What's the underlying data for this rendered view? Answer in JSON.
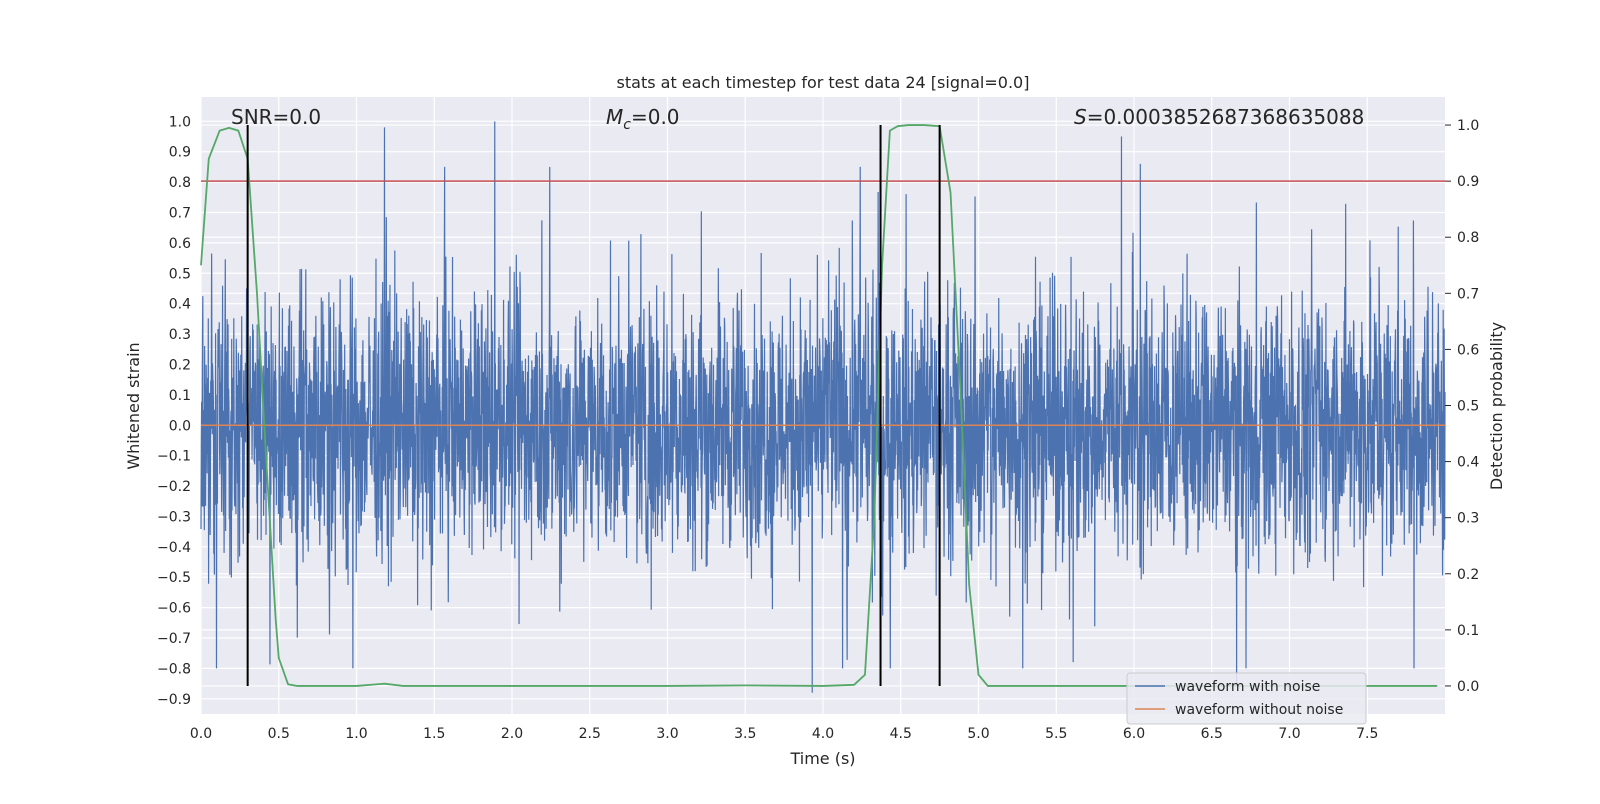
{
  "chart_data": {
    "type": "line",
    "title": "stats at each timestep for test data 24 [signal=0.0]",
    "xlabel": "Time (s)",
    "ylabel": "Whitened strain",
    "y2label": "Detection probability",
    "xlim": [
      0.0,
      8.0
    ],
    "ylim": [
      -0.95,
      1.08
    ],
    "y2lim": [
      -0.05,
      1.05
    ],
    "x_ticks": [
      0.0,
      0.5,
      1.0,
      1.5,
      2.0,
      2.5,
      3.0,
      3.5,
      4.0,
      4.5,
      5.0,
      5.5,
      6.0,
      6.5,
      7.0,
      7.5
    ],
    "x_tick_labels": [
      "0.0",
      "0.5",
      "1.0",
      "1.5",
      "2.0",
      "2.5",
      "3.0",
      "3.5",
      "4.0",
      "4.5",
      "5.0",
      "5.5",
      "6.0",
      "6.5",
      "7.0",
      "7.5"
    ],
    "y_ticks": [
      1.0,
      0.9,
      0.8,
      0.7,
      0.6,
      0.5,
      0.4,
      0.3,
      0.2,
      0.1,
      0.0,
      -0.1,
      -0.2,
      -0.3,
      -0.4,
      -0.5,
      -0.6,
      -0.7,
      -0.8,
      -0.9
    ],
    "y_tick_labels": [
      "1.0",
      "0.9",
      "0.8",
      "0.7",
      "0.6",
      "0.5",
      "0.4",
      "0.3",
      "0.2",
      "0.1",
      "0.0",
      "−0.1",
      "−0.2",
      "−0.3",
      "−0.4",
      "−0.5",
      "−0.6",
      "−0.7",
      "−0.8",
      "−0.9"
    ],
    "y2_ticks": [
      1.0,
      0.9,
      0.8,
      0.7,
      0.6,
      0.5,
      0.4,
      0.3,
      0.2,
      0.1,
      0.0
    ],
    "y2_tick_labels": [
      "1.0",
      "0.9",
      "0.8",
      "0.7",
      "0.6",
      "0.5",
      "0.4",
      "0.3",
      "0.2",
      "0.1",
      "0.0"
    ],
    "grid": true,
    "series": [
      {
        "name": "waveform with noise",
        "color": "#4c72b0",
        "axis": "left",
        "kind": "noise",
        "sample_count": 4096,
        "envelope": [
          -0.55,
          0.6
        ],
        "extreme_peaks": [
          {
            "x": 1.18,
            "y": 0.98
          },
          {
            "x": 1.89,
            "y": 1.0
          },
          {
            "x": 3.93,
            "y": -0.88
          },
          {
            "x": 6.66,
            "y": -0.85
          },
          {
            "x": 5.92,
            "y": 0.95
          },
          {
            "x": 6.04,
            "y": 0.86
          },
          {
            "x": 4.24,
            "y": 0.85
          },
          {
            "x": 7.8,
            "y": -0.8
          },
          {
            "x": 0.1,
            "y": -0.8
          }
        ]
      },
      {
        "name": "waveform without noise",
        "color": "#dd8452",
        "axis": "left",
        "x": [
          0.0,
          8.0
        ],
        "y": [
          0.0,
          0.0
        ]
      },
      {
        "name": "detection probability",
        "color": "#55a868",
        "axis": "right",
        "x": [
          0.0,
          0.05,
          0.12,
          0.18,
          0.24,
          0.3,
          0.36,
          0.42,
          0.48,
          0.5,
          0.56,
          0.62,
          0.8,
          1.0,
          1.18,
          1.3,
          1.6,
          2.0,
          3.0,
          3.5,
          4.0,
          4.2,
          4.27,
          4.33,
          4.38,
          4.43,
          4.48,
          4.55,
          4.65,
          4.75,
          4.82,
          4.88,
          4.94,
          5.0,
          5.06,
          5.2,
          6.0,
          7.0,
          7.95
        ],
        "y": [
          0.75,
          0.94,
          0.99,
          0.995,
          0.99,
          0.94,
          0.7,
          0.4,
          0.12,
          0.05,
          0.003,
          0.0,
          0.0,
          0.0,
          0.004,
          0.0,
          0.0,
          0.0,
          0.0,
          0.001,
          0.0,
          0.002,
          0.02,
          0.3,
          0.75,
          0.99,
          0.998,
          1.0,
          1.0,
          0.998,
          0.88,
          0.55,
          0.18,
          0.02,
          0.0,
          0.0,
          0.0,
          0.0,
          0.0
        ]
      }
    ],
    "hlines": [
      {
        "name": "threshold",
        "y2": 0.9,
        "color": "#c44e52"
      }
    ],
    "vlines": [
      {
        "x": 0.3,
        "y2_range": [
          0.0,
          1.0
        ]
      },
      {
        "x": 4.37,
        "y2_range": [
          0.0,
          1.0
        ]
      },
      {
        "x": 4.75,
        "y2_range": [
          0.0,
          1.0
        ]
      }
    ],
    "annotations": {
      "snr": "SNR=0.0",
      "mc_symbol": "M",
      "mc_subscript": "c",
      "mc_value": "=0.0",
      "s_symbol": "S",
      "s_value": "=0.0003852687368635088"
    },
    "legend": {
      "position": "lower-right",
      "entries": [
        "waveform with noise",
        "waveform without noise"
      ]
    }
  }
}
